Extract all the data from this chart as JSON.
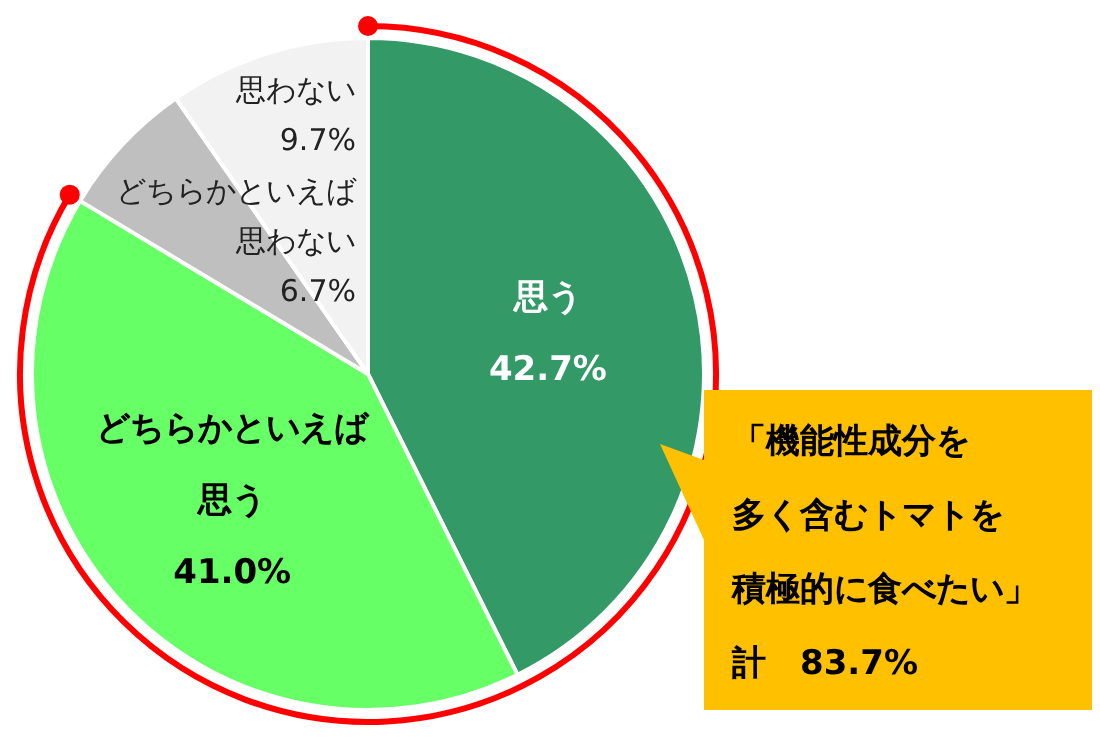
{
  "chart_data": {
    "type": "pie",
    "categories": [
      "思う",
      "どちらかといえば思う",
      "どちらかといえば思わない",
      "思わない"
    ],
    "values": [
      42.7,
      41.0,
      6.7,
      9.7
    ],
    "colors": [
      "#339966",
      "#66ff66",
      "#bfbfbf",
      "#f2f2f2"
    ],
    "value_labels": [
      "42.7%",
      "41.0%",
      "6.7%",
      "9.7%"
    ],
    "annotations": [
      "「機能性成分を多く含むトマトを積極的に食べたい」",
      "計　83.7%"
    ]
  }
}
